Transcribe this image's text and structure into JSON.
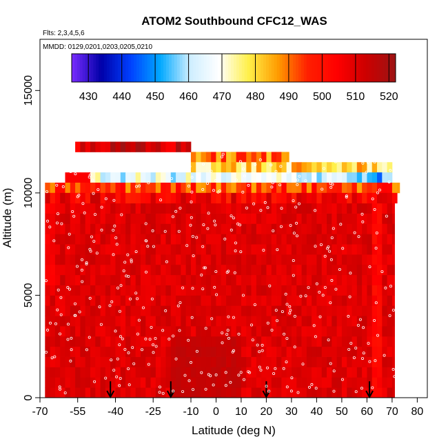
{
  "chart_data": {
    "type": "heatmap",
    "title": "ATOM2 Southbound CFC12_WAS",
    "notes": [
      "Flts: 2,3,4,5,6",
      "MMDD: 0129,0201,0203,0205,0210"
    ],
    "xlabel": "Latitude (deg N)",
    "ylabel": "Altitude (m)",
    "xlim": [
      -70,
      84
    ],
    "ylim": [
      0,
      17500
    ],
    "x_ticks": [
      -70,
      -55,
      -40,
      -25,
      -10,
      0,
      10,
      20,
      30,
      40,
      50,
      60,
      70,
      80
    ],
    "y_ticks": [
      0,
      5000,
      10000,
      15000
    ],
    "colorbar": {
      "range": [
        425,
        522
      ],
      "ticks": [
        430,
        440,
        450,
        460,
        470,
        480,
        490,
        500,
        510,
        520
      ],
      "colors": [
        "#7a2cff",
        "#0000a8",
        "#0040ff",
        "#00a8ff",
        "#cdeeff",
        "#ffffff",
        "#fff04a",
        "#ff9c00",
        "#ff2000",
        "#ff0000",
        "#cc0000",
        "#9c1414"
      ]
    },
    "profile_markers_lat": [
      -42,
      -18,
      20,
      61
    ],
    "data_extent": {
      "lat": [
        -68,
        71
      ],
      "alt": [
        0,
        12500
      ]
    },
    "high_altitude_bands": [
      {
        "lat": [
          -56,
          -10
        ],
        "alt": [
          12000,
          12500
        ],
        "value": 512
      },
      {
        "lat": [
          -10,
          29
        ],
        "alt": [
          11500,
          12000
        ],
        "value": 490
      },
      {
        "lat": [
          -10,
          70
        ],
        "alt": [
          11000,
          11500
        ],
        "value": 480
      },
      {
        "lat": [
          -60,
          70
        ],
        "alt": [
          10500,
          11000
        ],
        "value": 465
      },
      {
        "lat": [
          -68,
          73
        ],
        "alt": [
          10000,
          10500
        ],
        "value": 495
      },
      {
        "lat": [
          -68,
          72
        ],
        "alt": [
          9500,
          10000
        ],
        "value": 505
      }
    ]
  }
}
